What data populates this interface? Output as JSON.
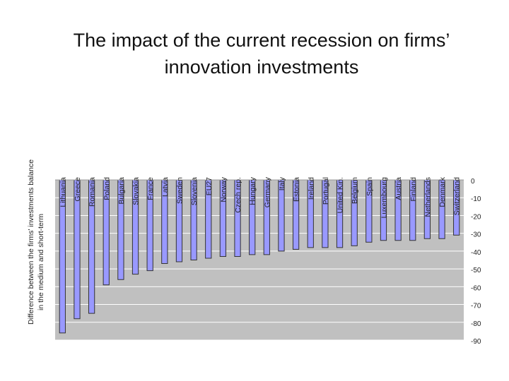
{
  "slide": {
    "title_line1": "The impact of the current recession on firms’",
    "title_line2": "innovation investments"
  },
  "chart_data": {
    "type": "bar",
    "ylabel_line1": "Difference between the firms' investments balance",
    "ylabel_line2": "in the medium and short-term",
    "categories": [
      "Lithuania",
      "Greece",
      "Romania",
      "Poland",
      "Bulgaria",
      "Slovakia",
      "France",
      "Latvia",
      "Sweden",
      "Slovenia",
      "EU27",
      "Norway",
      "Czech rep.",
      "Hungary",
      "Germany",
      "Italy",
      "Estonia",
      "Ireland",
      "Portugal",
      "United Kin.",
      "Belgium",
      "Spain",
      "Luxembourg",
      "Austria",
      "Finland",
      "Netherlands",
      "Denmark",
      "Switzerland"
    ],
    "values": [
      -86,
      -78,
      -75,
      -59,
      -56,
      -53,
      -51,
      -47,
      -46,
      -45,
      -44,
      -43,
      -43,
      -42,
      -42,
      -40,
      -39,
      -38,
      -38,
      -38,
      -37,
      -35,
      -34,
      -34,
      -34,
      -33,
      -33,
      -31
    ],
    "yticks": [
      "0",
      "-10",
      "-20",
      "-30",
      "-40",
      "-50",
      "-60",
      "-70",
      "-80",
      "-90"
    ],
    "ylim": [
      -90,
      0
    ],
    "grid": true,
    "colors": {
      "bar": "#9999ff",
      "bar_edge": "#333333",
      "plot_bg": "#c0c0c0",
      "grid": "#ffffff"
    }
  }
}
